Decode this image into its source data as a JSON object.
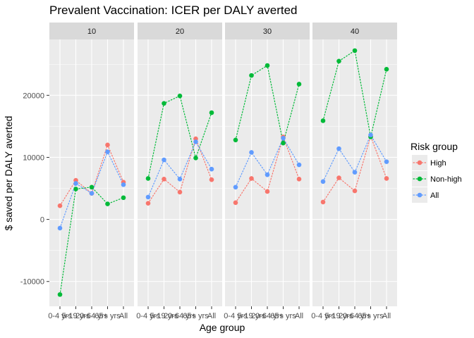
{
  "chart_data": {
    "type": "line",
    "title": "Prevalent Vaccination: ICER per DALY averted",
    "xlabel": "Age group",
    "ylabel": "$ saved per DALY averted",
    "categories": [
      "0-4 yrs",
      "5-19 yrs",
      "20-64 yrs",
      "65+ yrs",
      "All"
    ],
    "ylim": [
      -14000,
      29000
    ],
    "yticks": [
      -10000,
      0,
      10000,
      20000
    ],
    "ytick_labels": [
      "-10000",
      "0",
      "10000",
      "20000"
    ],
    "grid": true,
    "line_style": "dotted",
    "legend": {
      "title": "Risk group",
      "position": "right",
      "entries": [
        "High",
        "Non-high",
        "All"
      ]
    },
    "colors": {
      "High": "#F8766D",
      "Non-high": "#00BA38",
      "All": "#619CFF",
      "panel_background": "#EBEBEB",
      "strip_background": "#D9D9D9",
      "grid": "#FFFFFF"
    },
    "panels": [
      {
        "label": "10",
        "series": [
          {
            "name": "High",
            "values": [
              2200,
              6300,
              4200,
              12000,
              6000
            ]
          },
          {
            "name": "Non-high",
            "values": [
              -12100,
              4900,
              5200,
              2500,
              3500
            ]
          },
          {
            "name": "All",
            "values": [
              -1400,
              5800,
              4200,
              10900,
              5600
            ]
          }
        ]
      },
      {
        "label": "20",
        "series": [
          {
            "name": "High",
            "values": [
              2600,
              6500,
              4400,
              13000,
              6400
            ]
          },
          {
            "name": "Non-high",
            "values": [
              6600,
              18700,
              19900,
              9900,
              17200
            ]
          },
          {
            "name": "All",
            "values": [
              3600,
              9600,
              6500,
              12500,
              8100
            ]
          }
        ]
      },
      {
        "label": "30",
        "series": [
          {
            "name": "High",
            "values": [
              2700,
              6600,
              4500,
              13300,
              6500
            ]
          },
          {
            "name": "Non-high",
            "values": [
              12800,
              23200,
              24800,
              12300,
              21800
            ]
          },
          {
            "name": "All",
            "values": [
              5200,
              10800,
              7200,
              13100,
              8800
            ]
          }
        ]
      },
      {
        "label": "40",
        "series": [
          {
            "name": "High",
            "values": [
              2800,
              6700,
              4600,
              13400,
              6600
            ]
          },
          {
            "name": "Non-high",
            "values": [
              15900,
              25500,
              27200,
              13300,
              24200
            ]
          },
          {
            "name": "All",
            "values": [
              6100,
              11400,
              7600,
              13600,
              9300
            ]
          }
        ]
      }
    ]
  }
}
